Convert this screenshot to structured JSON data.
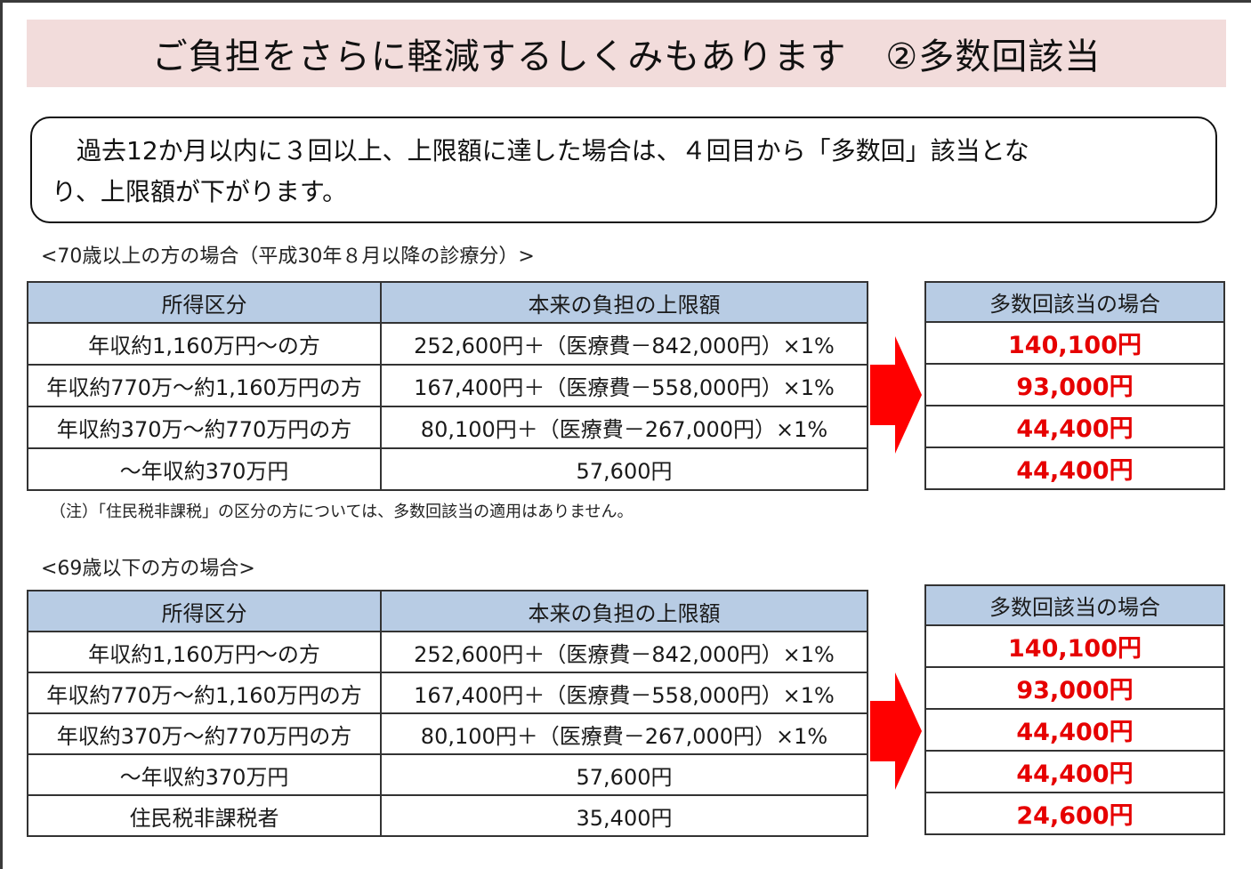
{
  "title": {
    "main": "ご負担をさらに軽減するしくみもあります",
    "suffix": "②多数回該当"
  },
  "notice": {
    "line1": "過去12か月以内に３回以上、上限額に達した場合は、４回目から「多数回」該当とな",
    "line2": "り、上限額が下がります。"
  },
  "section70": {
    "label": "<70歳以上の方の場合（平成30年８月以降の診療分）>",
    "headers": {
      "income": "所得区分",
      "limit": "本来の負担の上限額",
      "multiple": "多数回該当の場合"
    },
    "rows": [
      {
        "income": "年収約1,160万円～の方",
        "limit": "252,600円＋（医療費－842,000円）×1%",
        "multiple": "140,100円"
      },
      {
        "income": "年収約770万～約1,160万円の方",
        "limit": "167,400円＋（医療費－558,000円）×1%",
        "multiple": "93,000円"
      },
      {
        "income": "年収約370万～約770万円の方",
        "limit": "80,100円＋（医療費－267,000円）×1%",
        "multiple": "44,400円"
      },
      {
        "income": "～年収約370万円",
        "limit": "57,600円",
        "multiple": "44,400円"
      }
    ],
    "note": "（注）「住民税非課税」の区分の方については、多数回該当の適用はありません。"
  },
  "section69": {
    "label": "<69歳以下の方の場合>",
    "headers": {
      "income": "所得区分",
      "limit": "本来の負担の上限額",
      "multiple": "多数回該当の場合"
    },
    "rows": [
      {
        "income": "年収約1,160万円～の方",
        "limit": "252,600円＋（医療費－842,000円）×1%",
        "multiple": "140,100円"
      },
      {
        "income": "年収約770万～約1,160万円の方",
        "limit": "167,400円＋（医療費－558,000円）×1%",
        "multiple": "93,000円"
      },
      {
        "income": "年収約370万～約770万円の方",
        "limit": "80,100円＋（医療費－267,000円）×1%",
        "multiple": "44,400円"
      },
      {
        "income": "～年収約370万円",
        "limit": "57,600円",
        "multiple": "44,400円"
      },
      {
        "income": "住民税非課税者",
        "limit": "35,400円",
        "multiple": "24,600円"
      }
    ]
  },
  "colors": {
    "title_bg": "#f2dcdb",
    "header_bg": "#b8cce4",
    "highlight": "#e60000",
    "arrow": "#ff0000"
  },
  "icons": {
    "arrow": "right-arrow-icon"
  }
}
